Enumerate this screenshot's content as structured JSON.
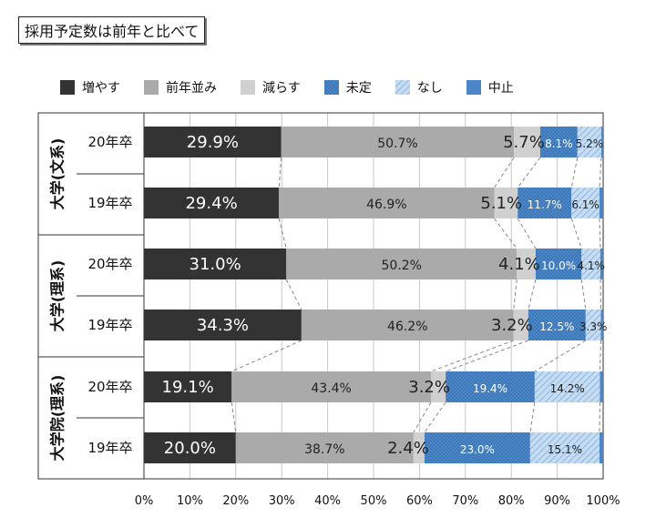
{
  "page_title": "採用予定数は前年と比べて",
  "chart_data": {
    "type": "bar",
    "orientation": "horizontal-stacked-percent",
    "title": "採用予定数は前年と比べて",
    "legend_position": "top",
    "xlim": [
      0,
      100
    ],
    "x_ticks": [
      "0%",
      "10%",
      "20%",
      "30%",
      "40%",
      "50%",
      "60%",
      "70%",
      "80%",
      "90%",
      "100%"
    ],
    "groups": [
      {
        "label": "大学(文系)",
        "rows": [
          "20年卒",
          "19年卒"
        ]
      },
      {
        "label": "大学(理系)",
        "rows": [
          "20年卒",
          "19年卒"
        ]
      },
      {
        "label": "大学院(理系)",
        "rows": [
          "20年卒",
          "19年卒"
        ]
      }
    ],
    "categories": [
      "20年卒",
      "19年卒",
      "20年卒",
      "19年卒",
      "20年卒",
      "19年卒"
    ],
    "series": [
      {
        "name": "増やす",
        "color": "#333333",
        "pattern": "solid",
        "values": [
          29.9,
          29.4,
          31.0,
          34.3,
          19.1,
          20.0
        ],
        "labels": [
          "29.9%",
          "29.4%",
          "31.0%",
          "34.3%",
          "19.1%",
          "20.0%"
        ]
      },
      {
        "name": "前年並み",
        "color": "#aaaaaa",
        "pattern": "solid",
        "values": [
          50.7,
          46.9,
          50.2,
          46.2,
          43.4,
          38.7
        ],
        "labels": [
          "50.7%",
          "46.9%",
          "50.2%",
          "46.2%",
          "43.4%",
          "38.7%"
        ]
      },
      {
        "name": "減らす",
        "color": "#d0d0d0",
        "pattern": "solid",
        "values": [
          5.7,
          5.1,
          4.1,
          3.2,
          3.2,
          2.4
        ],
        "labels": [
          "5.7%",
          "5.1%",
          "4.1%",
          "3.2%",
          "3.2%",
          "2.4%"
        ]
      },
      {
        "name": "未定",
        "color": "#4a86c8",
        "pattern": "dots",
        "values": [
          8.1,
          11.7,
          10.0,
          12.5,
          19.4,
          23.0
        ],
        "labels": [
          "8.1%",
          "11.7%",
          "10.0%",
          "12.5%",
          "19.4%",
          "23.0%"
        ]
      },
      {
        "name": "なし",
        "color": "#a8c8ec",
        "pattern": "diagonal",
        "values": [
          5.2,
          6.1,
          4.1,
          3.3,
          14.2,
          15.1
        ],
        "labels": [
          "5.2%",
          "6.1%",
          "4.1%",
          "3.3%",
          "14.2%",
          "15.1%"
        ]
      },
      {
        "name": "中止",
        "color": "#4a86c8",
        "pattern": "solid",
        "values": [
          0.4,
          0.8,
          0.6,
          0.5,
          0.7,
          0.8
        ],
        "labels": [
          "",
          "",
          "",
          "",
          "",
          ""
        ]
      }
    ]
  }
}
